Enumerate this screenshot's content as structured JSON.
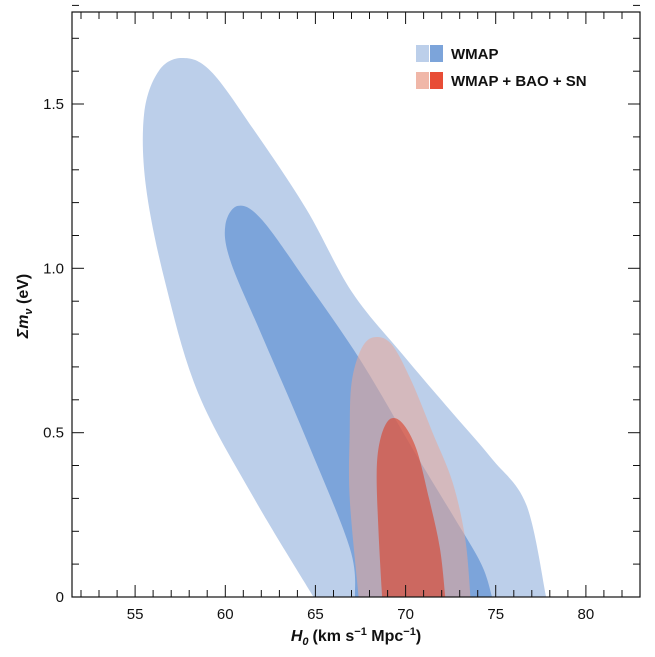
{
  "chart_data": {
    "type": "contour",
    "xlabel": {
      "main": "H",
      "sub": "0",
      "units": "(km s",
      "sup1": "−1",
      "mid": " Mpc",
      "sup2": "−1",
      "close": ")"
    },
    "ylabel": {
      "main": "Σm",
      "sub": "ν",
      "units": " (eV)"
    },
    "xlim": [
      51.5,
      83
    ],
    "ylim": [
      0,
      1.78
    ],
    "xticks": [
      55,
      60,
      65,
      70,
      75,
      80
    ],
    "xticklabels": [
      "55",
      "60",
      "65",
      "70",
      "75",
      "80"
    ],
    "yticks": [
      0,
      0.5,
      1.0,
      1.5
    ],
    "yticklabels": [
      "0",
      "0.5",
      "1.0",
      "1.5"
    ],
    "legend_position": "top-right",
    "grid": false,
    "series": [
      {
        "name": "WMAP",
        "colors": {
          "outer": "#bccfea",
          "inner": "#7ca4da"
        },
        "contours": [
          {
            "level": "95%",
            "points": [
              [
                64.9,
                0
              ],
              [
                61.6,
                0.3
              ],
              [
                58.5,
                0.62
              ],
              [
                56.7,
                0.95
              ],
              [
                55.6,
                1.25
              ],
              [
                55.5,
                1.47
              ],
              [
                56.3,
                1.6
              ],
              [
                57.6,
                1.64
              ],
              [
                59.2,
                1.6
              ],
              [
                61.6,
                1.42
              ],
              [
                64.5,
                1.18
              ],
              [
                67.0,
                0.93
              ],
              [
                69.8,
                0.74
              ],
              [
                72.6,
                0.56
              ],
              [
                74.8,
                0.42
              ],
              [
                76.7,
                0.28
              ],
              [
                77.8,
                0
              ]
            ]
          },
          {
            "level": "68%",
            "points": [
              [
                67.2,
                0
              ],
              [
                66.9,
                0.15
              ],
              [
                64.5,
                0.48
              ],
              [
                62.0,
                0.8
              ],
              [
                60.3,
                1.02
              ],
              [
                60.0,
                1.13
              ],
              [
                60.7,
                1.19
              ],
              [
                62.0,
                1.15
              ],
              [
                64.5,
                0.96
              ],
              [
                67.5,
                0.72
              ],
              [
                70.4,
                0.45
              ],
              [
                72.6,
                0.25
              ],
              [
                74.2,
                0.1
              ],
              [
                74.8,
                0
              ]
            ]
          }
        ]
      },
      {
        "name": "WMAP + BAO + SN",
        "colors": {
          "outer": "#e8a898",
          "inner": "#d9422c"
        },
        "contours": [
          {
            "level": "95%",
            "points": [
              [
                67.4,
                0
              ],
              [
                66.9,
                0.3
              ],
              [
                66.9,
                0.5
              ],
              [
                67.0,
                0.65
              ],
              [
                67.5,
                0.75
              ],
              [
                68.2,
                0.79
              ],
              [
                69.2,
                0.77
              ],
              [
                70.3,
                0.66
              ],
              [
                71.5,
                0.5
              ],
              [
                72.6,
                0.35
              ],
              [
                73.3,
                0.18
              ],
              [
                73.6,
                0
              ]
            ]
          },
          {
            "level": "68%",
            "points": [
              [
                68.7,
                0
              ],
              [
                68.5,
                0.2
              ],
              [
                68.4,
                0.38
              ],
              [
                68.6,
                0.48
              ],
              [
                69.1,
                0.54
              ],
              [
                69.8,
                0.53
              ],
              [
                70.6,
                0.45
              ],
              [
                71.3,
                0.3
              ],
              [
                71.9,
                0.15
              ],
              [
                72.2,
                0
              ]
            ]
          }
        ]
      }
    ]
  }
}
